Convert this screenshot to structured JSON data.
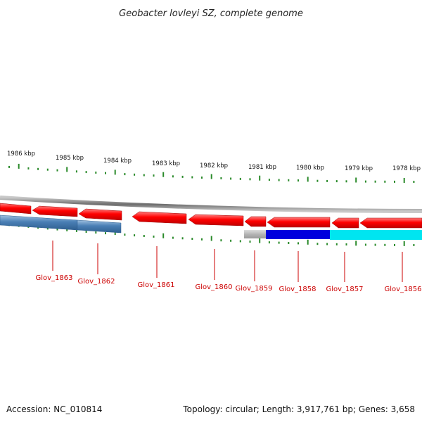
{
  "title": "Geobacter lovleyi SZ, complete genome",
  "footer": {
    "accession": "Accession: NC_010814",
    "summary": "Topology: circular; Length: 3,917,761 bp; Genes: 3,658"
  },
  "colors": {
    "forward_gene": "#ff0000",
    "reverse_gene": "#4a7fb5",
    "tick": "#2a8a2a",
    "backbone": "#8a8a8a",
    "label": "#cc0000",
    "selected_gene": "#0000dd",
    "cyan_gene": "#00e5f0",
    "gray_gene": "#b8b8b8"
  },
  "kbp_labels": [
    "1986 kbp",
    "1985 kbp",
    "1984 kbp",
    "1983 kbp",
    "1982 kbp",
    "1981 kbp",
    "1980 kbp",
    "1979 kbp",
    "1978 kbp"
  ],
  "gene_labels": [
    "Glov_1863",
    "Glov_1862",
    "Glov_1861",
    "Glov_1860",
    "Glov_1859",
    "Glov_1858",
    "Glov_1857",
    "Glov_1856"
  ]
}
